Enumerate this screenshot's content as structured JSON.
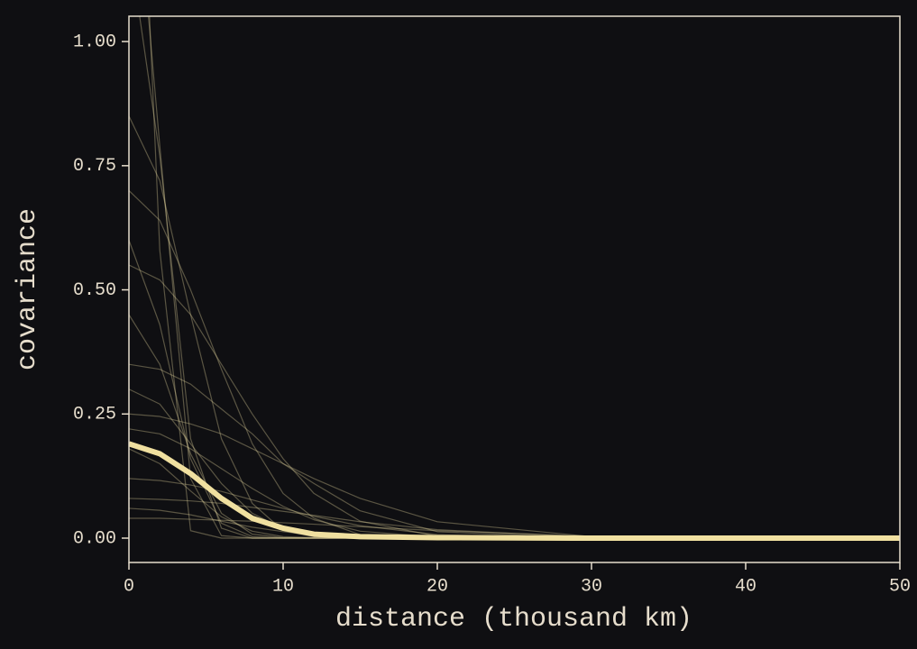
{
  "chart_data": {
    "type": "line",
    "xlabel": "distance (thousand km)",
    "ylabel": "covariance",
    "x": [
      0,
      2,
      4,
      6,
      8,
      10,
      12,
      15,
      20,
      30,
      50
    ],
    "xlim": [
      0,
      50
    ],
    "xticks": [
      0,
      10,
      20,
      30,
      40,
      50
    ],
    "ylim": [
      -0.049,
      1.051
    ],
    "yticks": [
      {
        "value": 0,
        "label": "0.00"
      },
      {
        "value": 0.25,
        "label": "0.25"
      },
      {
        "value": 0.5,
        "label": "0.50"
      },
      {
        "value": 0.75,
        "label": "0.75"
      },
      {
        "value": 1,
        "label": "1.00"
      }
    ],
    "series": [
      {
        "color": "#e8d9a0",
        "values": [
          1.5,
          0.79,
          0.12,
          0.005,
          0,
          0,
          0,
          0,
          0,
          0,
          0
        ]
      },
      {
        "color": "#e8d9a0",
        "values": [
          1.2,
          0.77,
          0.2,
          0.02,
          0,
          0,
          0,
          0,
          0,
          0,
          0
        ]
      },
      {
        "color": "#e8d9a0",
        "values": [
          0.85,
          0.72,
          0.45,
          0.2,
          0.07,
          0.015,
          0.003,
          0,
          0,
          0,
          0
        ]
      },
      {
        "color": "#e8d9a0",
        "values": [
          0.7,
          0.64,
          0.5,
          0.34,
          0.19,
          0.09,
          0.04,
          0.007,
          0,
          0,
          0
        ]
      },
      {
        "color": "#e8d9a0",
        "values": [
          0.55,
          0.52,
          0.45,
          0.35,
          0.25,
          0.16,
          0.09,
          0.034,
          0.004,
          0,
          0
        ]
      },
      {
        "color": "#e8d9a0",
        "values": [
          0.45,
          0.35,
          0.17,
          0.05,
          0.008,
          0.001,
          0,
          0,
          0,
          0,
          0
        ]
      },
      {
        "color": "#e8d9a0",
        "values": [
          0.35,
          0.34,
          0.31,
          0.26,
          0.21,
          0.15,
          0.11,
          0.055,
          0.013,
          0,
          0
        ]
      },
      {
        "color": "#e8d9a0",
        "values": [
          0.3,
          0.27,
          0.19,
          0.11,
          0.05,
          0.019,
          0.005,
          0.001,
          0,
          0,
          0
        ]
      },
      {
        "color": "#e8d9a0",
        "values": [
          0.25,
          0.245,
          0.23,
          0.21,
          0.18,
          0.15,
          0.12,
          0.08,
          0.033,
          0.003,
          0
        ]
      },
      {
        "color": "#e8d9a0",
        "values": [
          0.18,
          0.15,
          0.095,
          0.043,
          0.014,
          0.003,
          0.001,
          0,
          0,
          0,
          0
        ]
      },
      {
        "color": "#e8d9a0",
        "values": [
          0.12,
          0.116,
          0.107,
          0.094,
          0.077,
          0.06,
          0.044,
          0.025,
          0.007,
          0,
          0
        ]
      },
      {
        "color": "#e8d9a0",
        "values": [
          0.08,
          0.078,
          0.075,
          0.07,
          0.062,
          0.054,
          0.046,
          0.033,
          0.017,
          0.002,
          0
        ]
      },
      {
        "color": "#e8d9a0",
        "values": [
          0.06,
          0.056,
          0.047,
          0.034,
          0.022,
          0.013,
          0.006,
          0.002,
          0,
          0,
          0
        ]
      },
      {
        "color": "#e8d9a0",
        "values": [
          0.04,
          0.04,
          0.038,
          0.036,
          0.034,
          0.031,
          0.028,
          0.023,
          0.015,
          0.004,
          0
        ]
      },
      {
        "color": "#e8d9a0",
        "values": [
          2.0,
          0.58,
          0.015,
          0,
          0,
          0,
          0,
          0,
          0,
          0,
          0
        ]
      },
      {
        "color": "#e8d9a0",
        "values": [
          0.6,
          0.43,
          0.16,
          0.03,
          0.003,
          0,
          0,
          0,
          0,
          0,
          0
        ]
      },
      {
        "color": "#e8d9a0",
        "values": [
          0.22,
          0.21,
          0.18,
          0.14,
          0.1,
          0.064,
          0.037,
          0.014,
          0.002,
          0,
          0
        ]
      }
    ],
    "mean": {
      "color": "#f0e0a0",
      "values": [
        0.19,
        0.17,
        0.13,
        0.08,
        0.04,
        0.02,
        0.008,
        0.003,
        0.001,
        0,
        0
      ]
    }
  }
}
